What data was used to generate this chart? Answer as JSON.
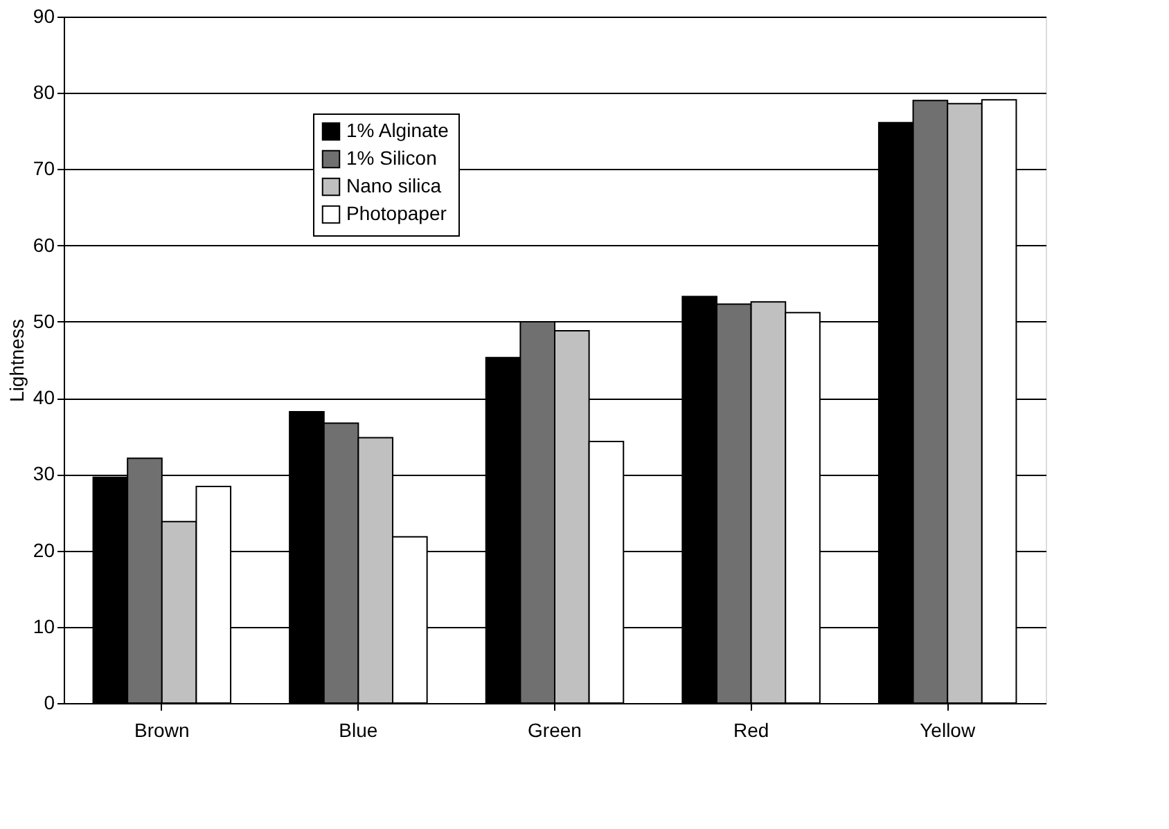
{
  "chart_data": {
    "type": "bar",
    "ylabel": "Lightness",
    "categories": [
      "Brown",
      "Blue",
      "Green",
      "Red",
      "Yellow"
    ],
    "series": [
      {
        "name": "1% Alginate",
        "color": "#000000",
        "values": [
          29.6,
          38.2,
          45.3,
          53.3,
          76.1
        ]
      },
      {
        "name": "1% Silicon",
        "color": "#707070",
        "values": [
          32.1,
          36.7,
          50.0,
          52.3,
          79.0
        ]
      },
      {
        "name": "Nano silica",
        "color": "#c0c0c0",
        "values": [
          23.8,
          34.8,
          48.8,
          52.6,
          78.6
        ]
      },
      {
        "name": "Photopaper",
        "color": "#ffffff",
        "values": [
          28.4,
          21.8,
          34.3,
          51.2,
          79.1
        ]
      }
    ],
    "ylim": [
      0,
      90
    ],
    "yticks": [
      0,
      10,
      20,
      30,
      40,
      50,
      60,
      70,
      80,
      90
    ],
    "grid": "y",
    "legend": "top left"
  }
}
